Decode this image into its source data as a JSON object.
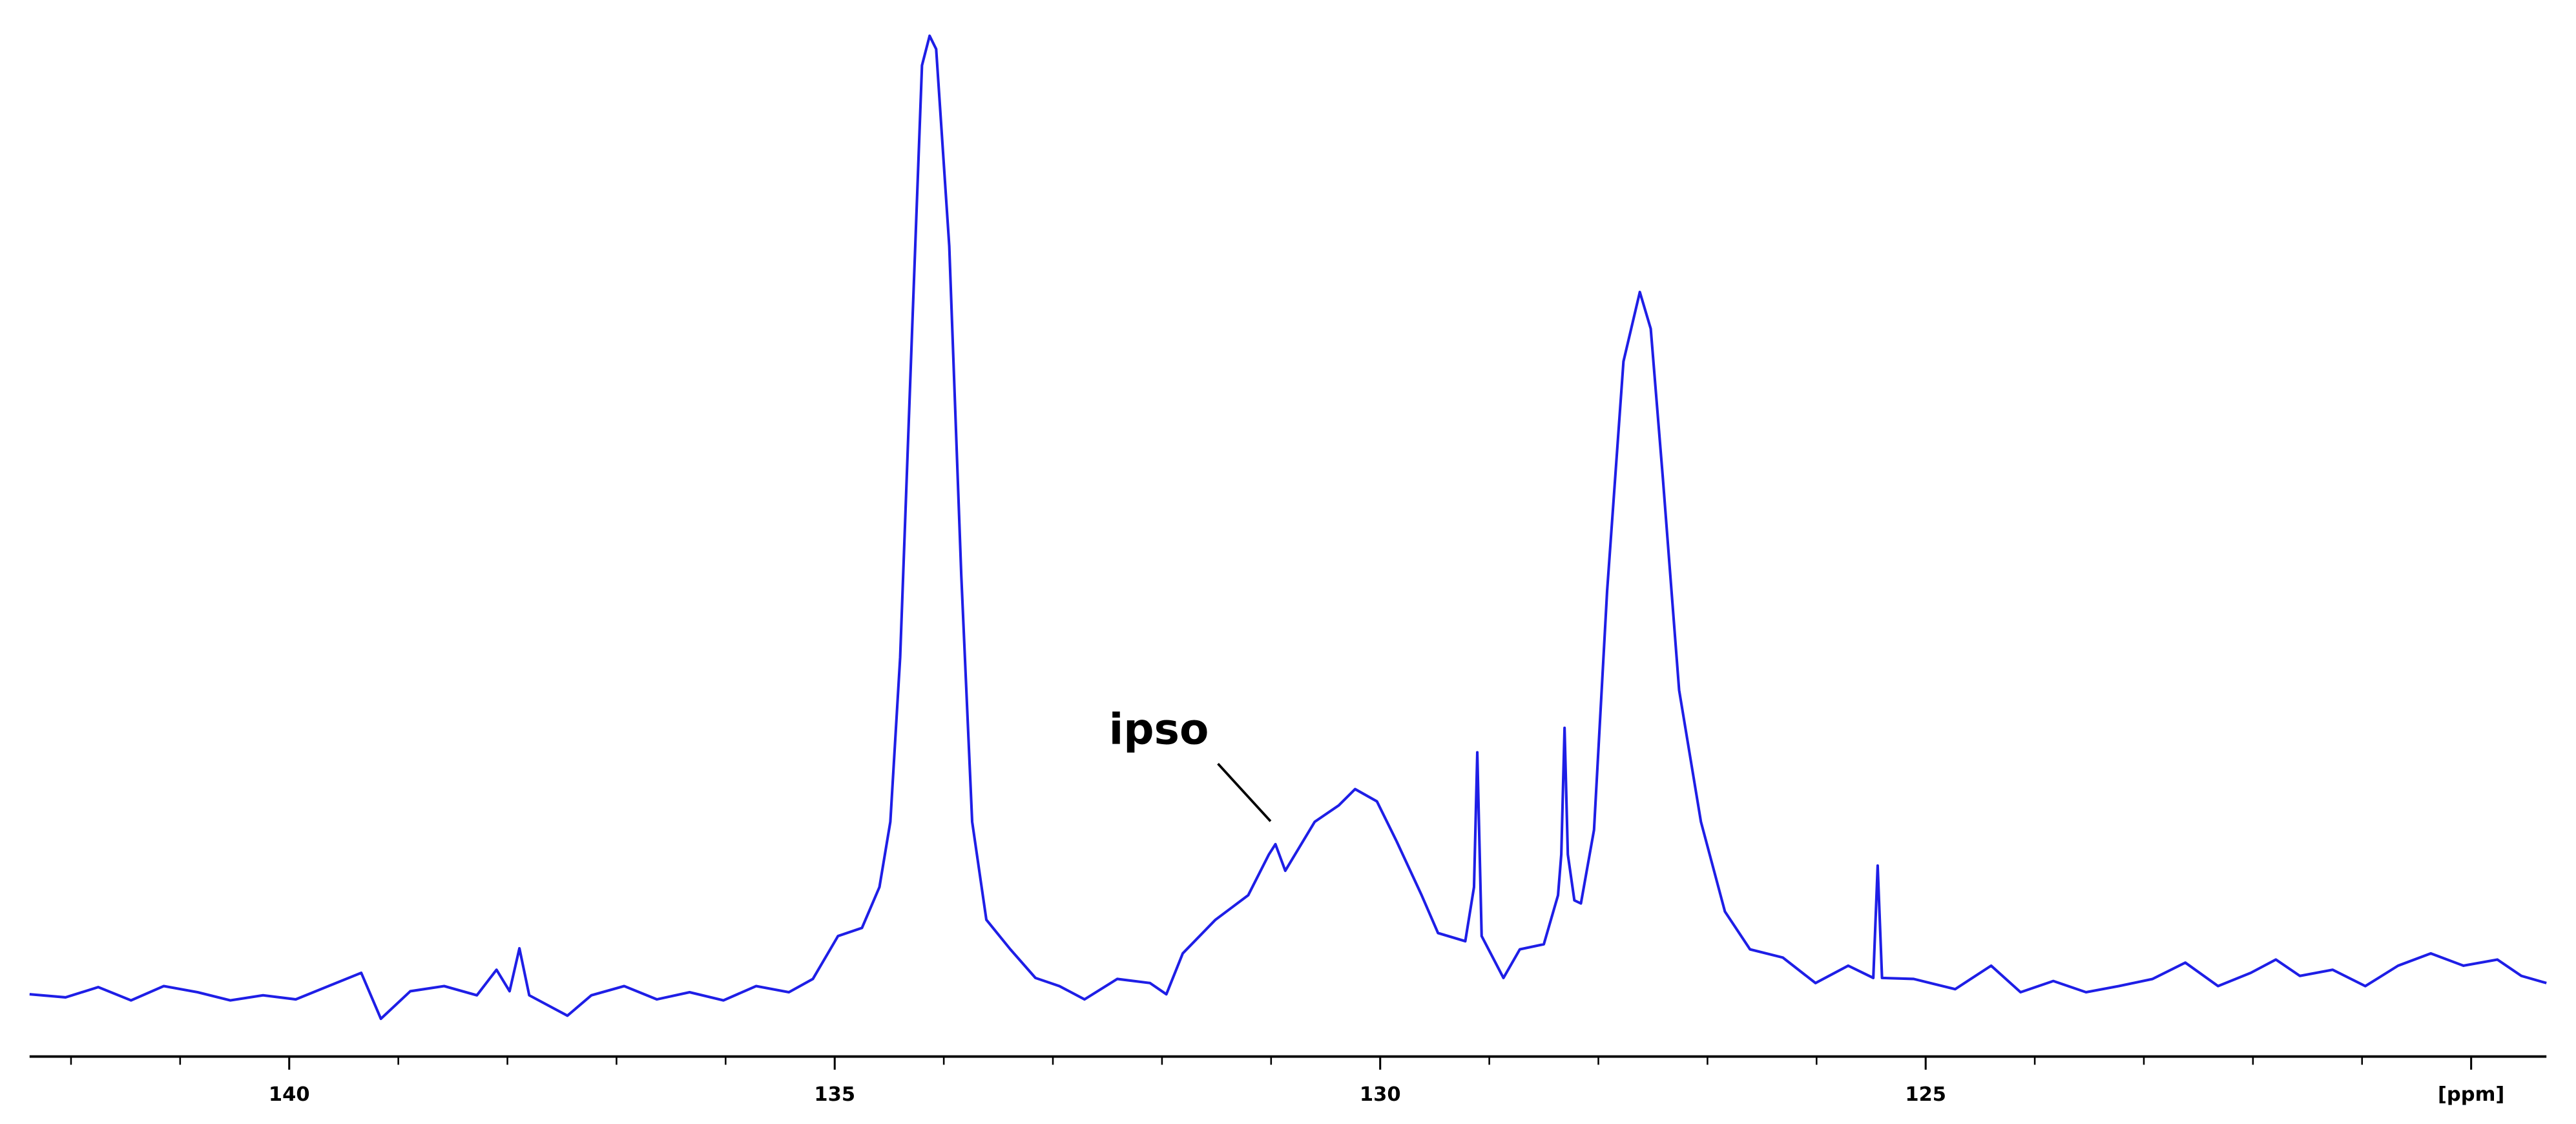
{
  "chart_data": {
    "type": "line",
    "x_reversed": true,
    "xlim": [
      142.38,
      119.31
    ],
    "ylim": [
      0,
      103.5
    ],
    "xticks": [
      140,
      135,
      130,
      125,
      {
        "value": 120,
        "label": "[ppm]"
      }
    ],
    "xminorticks": [
      142,
      141,
      139,
      138,
      137,
      136,
      134,
      133,
      132,
      131,
      129,
      128,
      127,
      126,
      124,
      123,
      122,
      121
    ],
    "annotations": [
      {
        "text": "ipso",
        "x": 130.96,
        "y": 20.8
      }
    ],
    "series": [
      {
        "color": "#1e1ee6",
        "x": [
          142.38,
          142.05,
          141.75,
          141.45,
          141.15,
          140.84,
          140.54,
          140.24,
          139.94,
          139.64,
          139.34,
          139.16,
          138.89,
          138.58,
          138.28,
          138.1,
          137.98,
          137.89,
          137.8,
          137.45,
          137.23,
          136.93,
          136.63,
          136.33,
          136.02,
          135.72,
          135.42,
          135.2,
          134.97,
          134.75,
          134.59,
          134.49,
          134.4,
          134.29,
          134.2,
          134.13,
          134.07,
          133.95,
          133.84,
          133.74,
          133.61,
          133.39,
          133.16,
          132.94,
          132.71,
          132.41,
          132.11,
          131.96,
          131.81,
          131.51,
          131.21,
          131.02,
          130.96,
          130.87,
          130.6,
          130.38,
          130.23,
          130.03,
          129.85,
          129.62,
          129.47,
          129.22,
          129.14,
          129.11,
          129.07,
          128.87,
          128.72,
          128.5,
          128.37,
          128.34,
          128.31,
          128.28,
          128.22,
          128.16,
          128.04,
          127.92,
          127.77,
          127.62,
          127.52,
          127.41,
          127.26,
          127.06,
          126.84,
          126.61,
          126.31,
          126.01,
          125.71,
          125.48,
          125.44,
          125.4,
          125.11,
          124.73,
          124.4,
          124.13,
          123.83,
          123.53,
          123.23,
          122.92,
          122.62,
          122.32,
          122.02,
          121.79,
          121.57,
          121.27,
          120.97,
          120.67,
          120.37,
          120.07,
          119.76,
          119.54,
          119.31
        ],
        "values": [
          6.1,
          5.8,
          6.8,
          5.5,
          6.9,
          6.3,
          5.5,
          6.0,
          5.6,
          6.9,
          8.2,
          3.7,
          6.4,
          6.9,
          6.0,
          8.5,
          6.4,
          10.6,
          6.0,
          4.0,
          6.0,
          6.9,
          5.6,
          6.3,
          5.5,
          6.9,
          6.3,
          7.6,
          11.8,
          12.6,
          16.6,
          23.0,
          39.1,
          71.3,
          97.1,
          100.0,
          98.7,
          79.4,
          47.2,
          23.0,
          13.4,
          10.5,
          7.7,
          6.9,
          5.6,
          7.6,
          7.2,
          6.1,
          10.1,
          13.4,
          15.8,
          19.8,
          20.8,
          18.2,
          23.0,
          24.6,
          26.2,
          25.0,
          21.1,
          15.8,
          12.1,
          11.3,
          16.6,
          29.8,
          11.8,
          7.7,
          10.5,
          11.0,
          15.8,
          19.8,
          32.2,
          19.8,
          15.3,
          15.0,
          22.2,
          45.6,
          68.1,
          74.9,
          71.3,
          56.8,
          35.9,
          23.0,
          14.2,
          10.5,
          9.7,
          7.2,
          8.9,
          7.7,
          18.7,
          7.7,
          7.6,
          6.6,
          8.9,
          6.3,
          7.4,
          6.3,
          6.9,
          7.6,
          9.2,
          6.9,
          8.2,
          9.5,
          7.9,
          8.5,
          6.9,
          8.9,
          10.1,
          8.9,
          9.5,
          7.9,
          7.2
        ]
      }
    ]
  }
}
